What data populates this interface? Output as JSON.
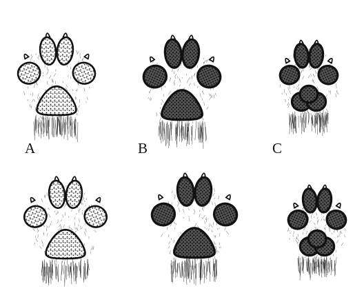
{
  "figure": {
    "labels": [
      "A",
      "B",
      "C"
    ],
    "ink_color": "#111111",
    "paper_color": "#ffffff"
  }
}
